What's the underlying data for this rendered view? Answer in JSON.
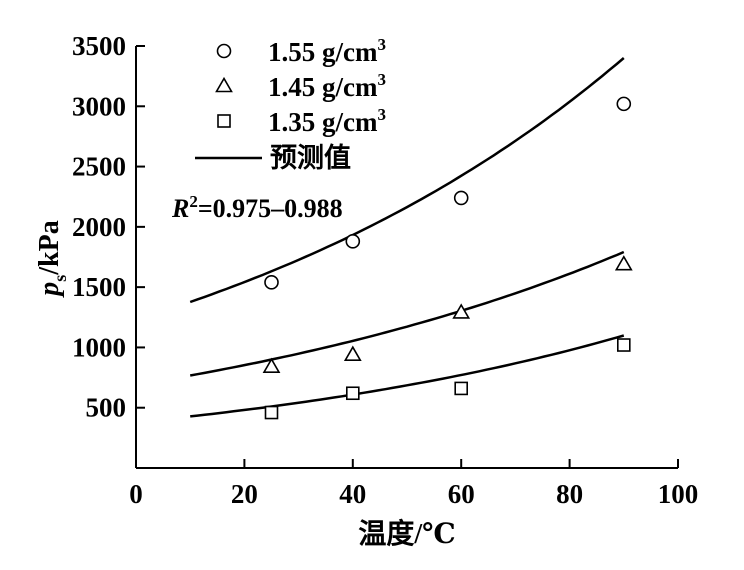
{
  "chart_data": {
    "type": "scatter",
    "xlabel": "温度/℃",
    "ylabel_main": "p",
    "ylabel_sub": "s",
    "ylabel_unit": "/kPa",
    "xlim": [
      0,
      100
    ],
    "ylim": [
      0,
      3500
    ],
    "x_ticks": [
      0,
      20,
      40,
      60,
      80,
      100
    ],
    "y_ticks": [
      500,
      1000,
      1500,
      2000,
      2500,
      3000,
      3500
    ],
    "grid": false,
    "legend_position": "top-left",
    "series": [
      {
        "name_main": "1.55 g/cm",
        "name_sup": "3",
        "marker": "circle",
        "x": [
          25,
          40,
          60,
          90
        ],
        "y": [
          1540,
          1880,
          2240,
          3020
        ],
        "fit": {
          "x": [
            10,
            90
          ],
          "a": 1230,
          "b": 0.0113
        }
      },
      {
        "name_main": "1.45 g/cm",
        "name_sup": "3",
        "marker": "triangle",
        "x": [
          25,
          40,
          60,
          90
        ],
        "y": [
          840,
          940,
          1290,
          1690
        ],
        "fit": {
          "x": [
            10,
            90
          ],
          "a": 690,
          "b": 0.0106
        }
      },
      {
        "name_main": "1.35 g/cm",
        "name_sup": "3",
        "marker": "square",
        "x": [
          25,
          40,
          60,
          90
        ],
        "y": [
          460,
          620,
          660,
          1020
        ],
        "fit": {
          "x": [
            10,
            90
          ],
          "a": 380,
          "b": 0.0118
        }
      }
    ],
    "fit_legend": "预测值",
    "annotation": {
      "r_letter": "R",
      "r_sup": "2",
      "r_text": "=0.975–0.988"
    }
  }
}
